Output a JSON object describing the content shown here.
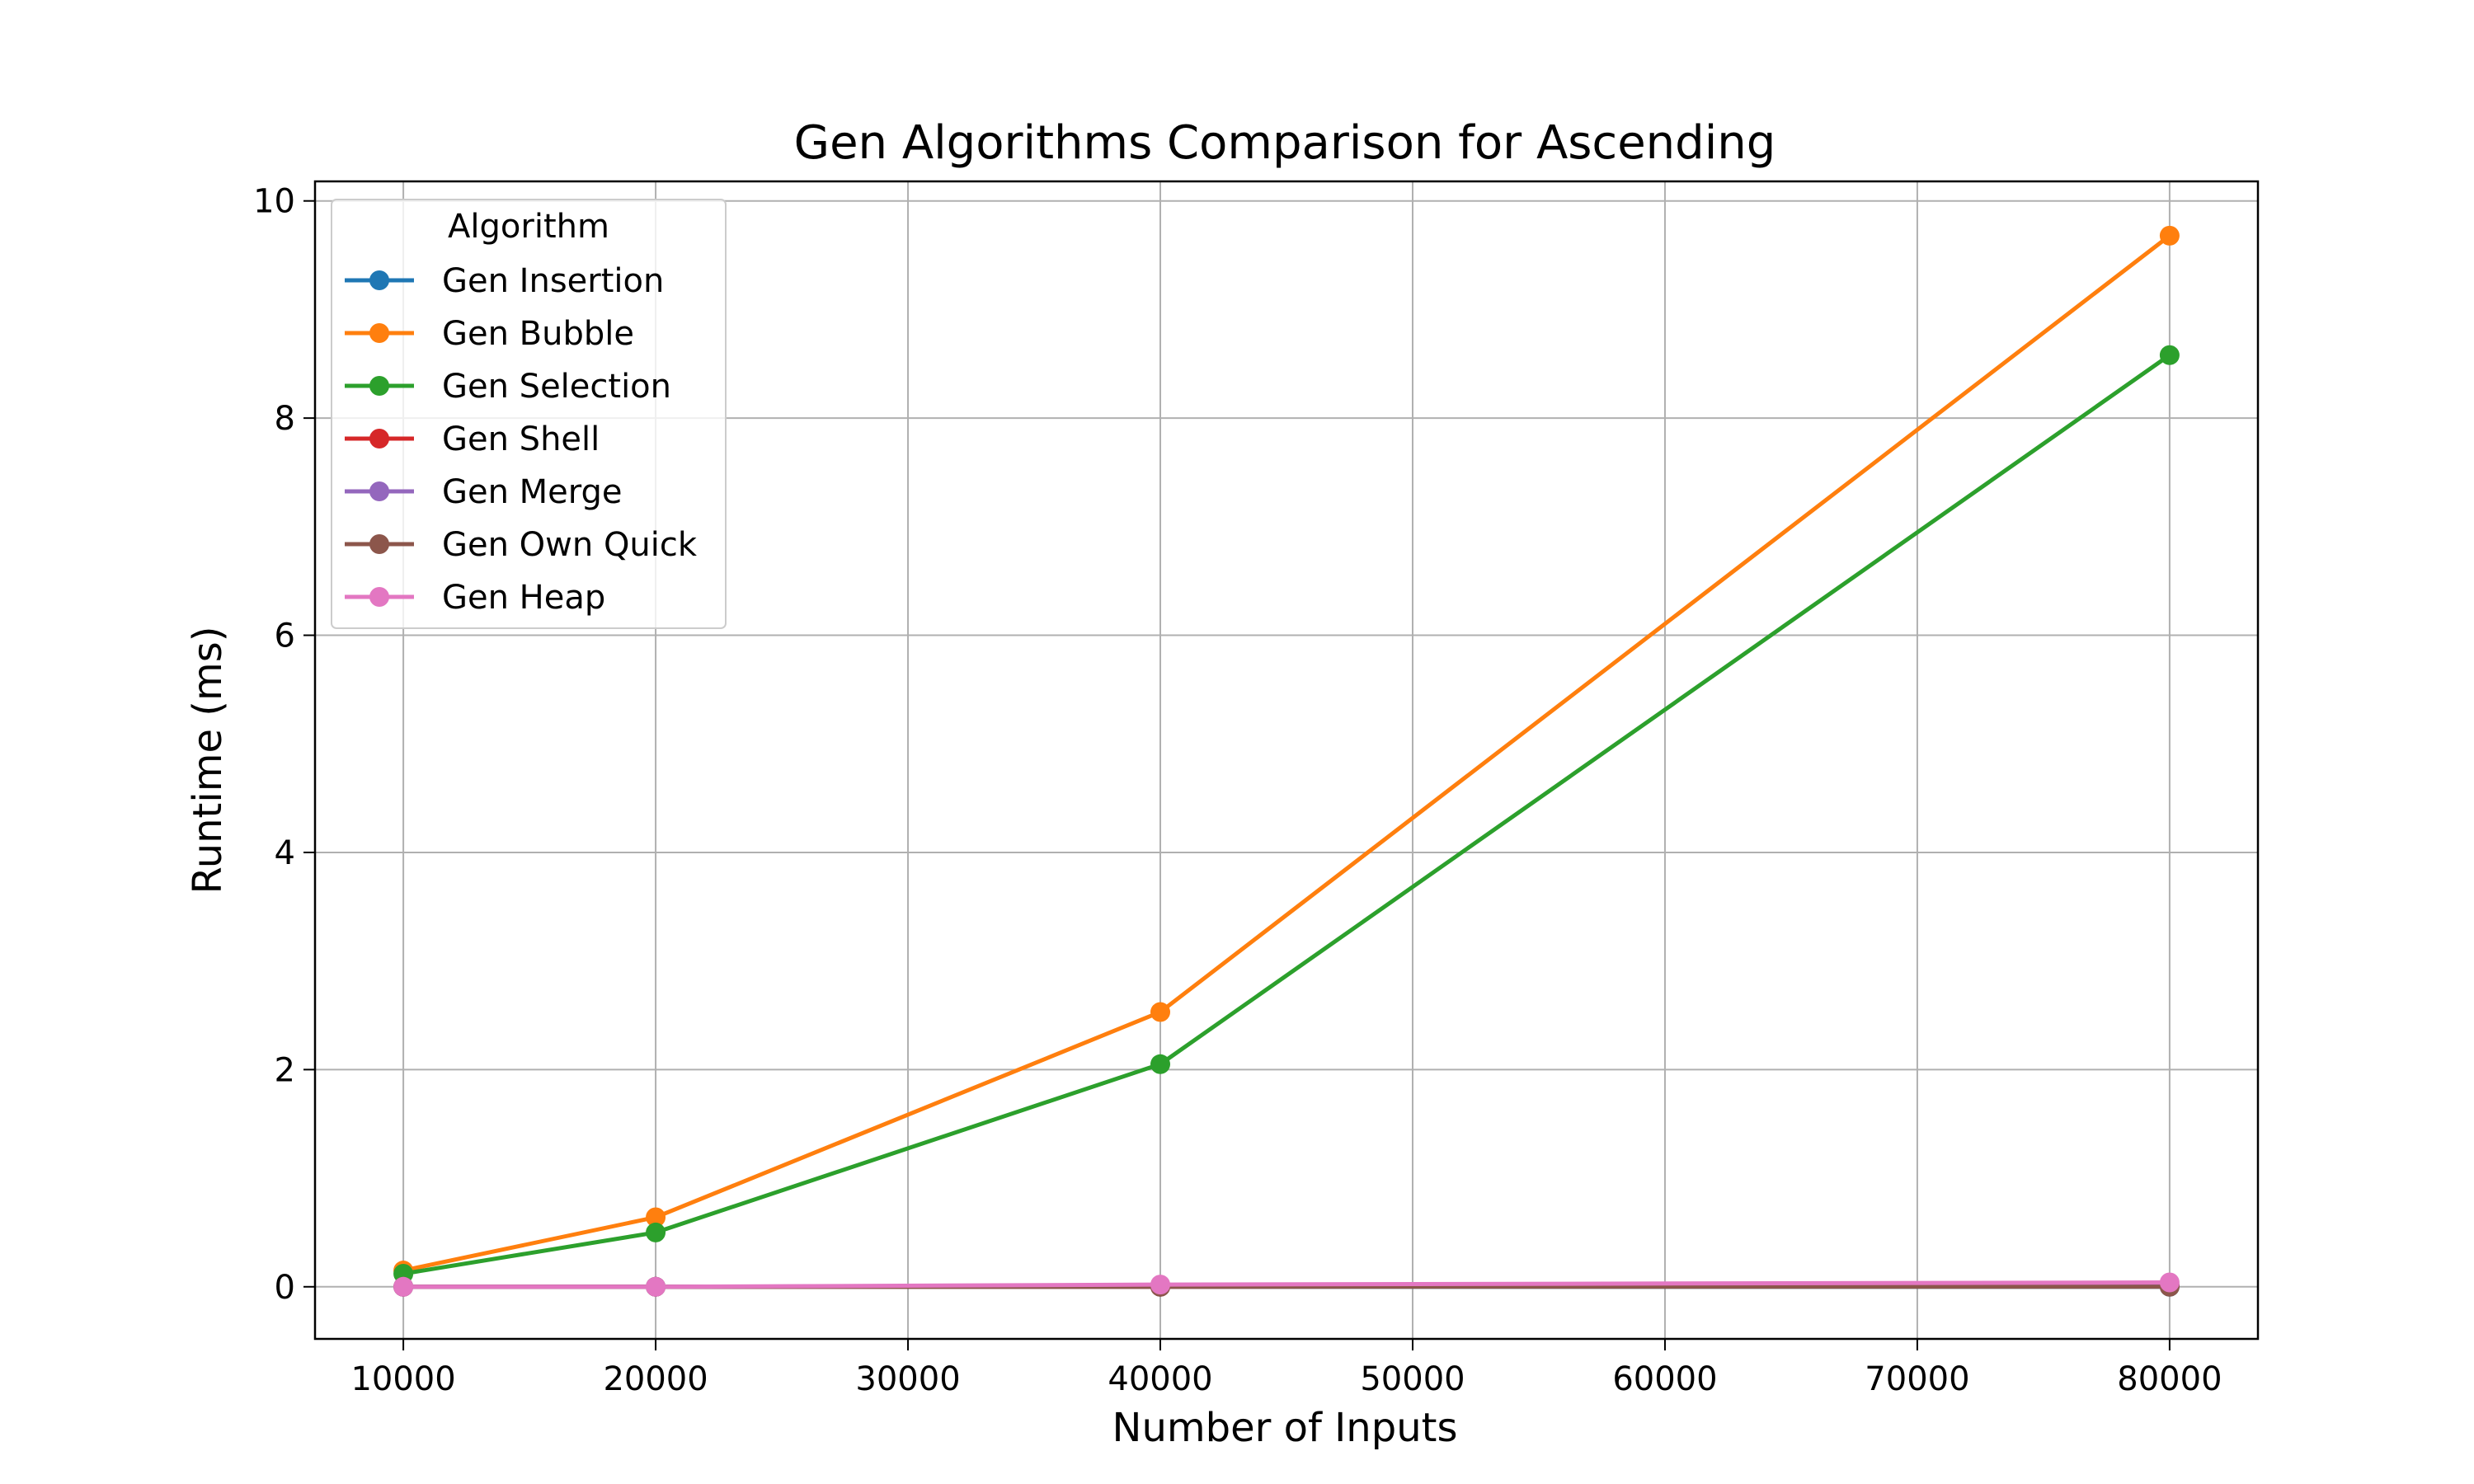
{
  "chart_data": {
    "type": "line",
    "title": "Gen Algorithms Comparison for Ascending",
    "xlabel": "Number of Inputs",
    "ylabel": "Runtime (ms)",
    "x": [
      10000,
      20000,
      40000,
      80000
    ],
    "xlim": [
      6500,
      83500
    ],
    "ylim": [
      -0.48,
      10.18
    ],
    "xticks": [
      10000,
      20000,
      30000,
      40000,
      50000,
      60000,
      70000,
      80000
    ],
    "yticks": [
      0,
      2,
      4,
      6,
      8,
      10
    ],
    "grid": true,
    "legend": {
      "title": "Algorithm",
      "location": "upper-left"
    },
    "series": [
      {
        "name": "Gen Insertion",
        "color": "#1f77b4",
        "values": [
          0.0,
          0.0,
          0.0,
          0.0
        ]
      },
      {
        "name": "Gen Bubble",
        "color": "#ff7f0e",
        "values": [
          0.15,
          0.64,
          2.53,
          9.68
        ]
      },
      {
        "name": "Gen Selection",
        "color": "#2ca02c",
        "values": [
          0.12,
          0.5,
          2.05,
          8.58
        ]
      },
      {
        "name": "Gen Shell",
        "color": "#d62728",
        "values": [
          0.0,
          0.0,
          0.0,
          0.01
        ]
      },
      {
        "name": "Gen Merge",
        "color": "#9467bd",
        "values": [
          0.0,
          0.0,
          0.01,
          0.01
        ]
      },
      {
        "name": "Gen Own Quick",
        "color": "#8c564b",
        "values": [
          0.0,
          0.0,
          0.0,
          0.0
        ]
      },
      {
        "name": "Gen Heap",
        "color": "#e377c2",
        "values": [
          0.0,
          0.0,
          0.02,
          0.04
        ]
      }
    ]
  }
}
